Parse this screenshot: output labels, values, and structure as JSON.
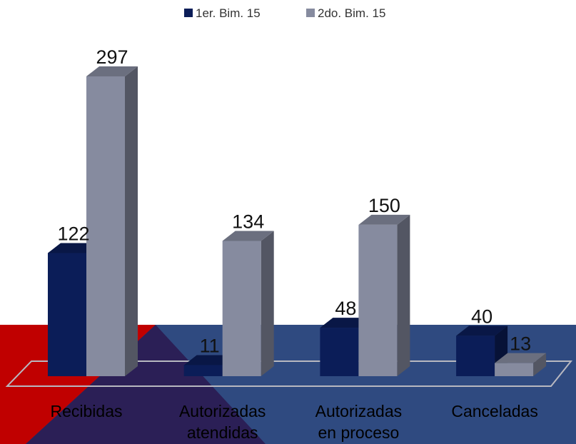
{
  "chart_data": {
    "type": "bar3d",
    "categories": [
      "Recibidas",
      "Autorizadas atendidas",
      "Autorizadas en proceso",
      "Canceladas"
    ],
    "series": [
      {
        "name": "1er. Bim. 15",
        "color": "#0b1d58",
        "values": [
          122,
          11,
          48,
          40
        ]
      },
      {
        "name": "2do. Bim. 15",
        "color": "#868b9f",
        "values": [
          297,
          134,
          150,
          13
        ]
      }
    ],
    "legend": "top"
  }
}
